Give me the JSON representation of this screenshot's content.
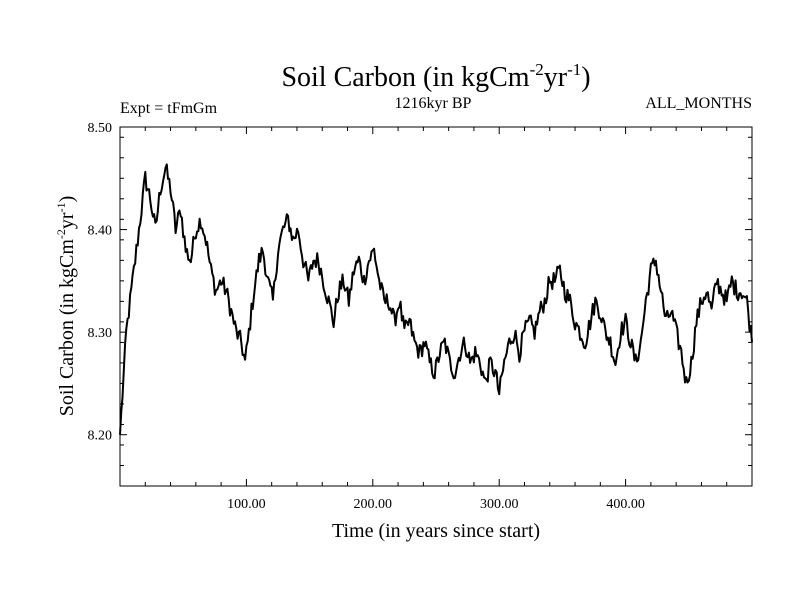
{
  "chart_data": {
    "type": "line",
    "title_main": "Soil Carbon (in kgCm",
    "title_sup1": "-2",
    "title_mid": "yr",
    "title_sup2": "-1",
    "title_end": ")",
    "experiment_label": "Expt = tFmGm",
    "period_label": "1216kyr BP",
    "months_label": "ALL_MONTHS",
    "xlabel": "Time (in years since start)",
    "ylabel_main": "Soil Carbon (in kgCm",
    "ylabel_sup1": "-2",
    "ylabel_mid": "yr",
    "ylabel_sup2": "-1",
    "ylabel_end": ")",
    "xlim": [
      0,
      500
    ],
    "ylim": [
      8.15,
      8.5
    ],
    "xticks": [
      100,
      200,
      300,
      400
    ],
    "xtick_labels": [
      "100.00",
      "200.00",
      "300.00",
      "400.00"
    ],
    "yticks": [
      8.2,
      8.3,
      8.4,
      8.5
    ],
    "ytick_labels": [
      "8.20",
      "8.30",
      "8.40",
      "8.50"
    ],
    "series": [
      {
        "name": "Soil Carbon",
        "color": "#000000",
        "anchors": [
          [
            0,
            8.2
          ],
          [
            2,
            8.24
          ],
          [
            5,
            8.3
          ],
          [
            8,
            8.33
          ],
          [
            12,
            8.37
          ],
          [
            16,
            8.41
          ],
          [
            20,
            8.45
          ],
          [
            24,
            8.43
          ],
          [
            28,
            8.4
          ],
          [
            32,
            8.44
          ],
          [
            36,
            8.46
          ],
          [
            40,
            8.44
          ],
          [
            44,
            8.4
          ],
          [
            48,
            8.42
          ],
          [
            52,
            8.38
          ],
          [
            56,
            8.37
          ],
          [
            60,
            8.4
          ],
          [
            64,
            8.41
          ],
          [
            68,
            8.39
          ],
          [
            72,
            8.36
          ],
          [
            76,
            8.34
          ],
          [
            80,
            8.35
          ],
          [
            84,
            8.34
          ],
          [
            88,
            8.32
          ],
          [
            92,
            8.3
          ],
          [
            96,
            8.29
          ],
          [
            99,
            8.27
          ],
          [
            102,
            8.3
          ],
          [
            106,
            8.34
          ],
          [
            110,
            8.37
          ],
          [
            113,
            8.38
          ],
          [
            117,
            8.35
          ],
          [
            121,
            8.33
          ],
          [
            125,
            8.38
          ],
          [
            129,
            8.4
          ],
          [
            133,
            8.41
          ],
          [
            137,
            8.39
          ],
          [
            141,
            8.4
          ],
          [
            145,
            8.37
          ],
          [
            149,
            8.35
          ],
          [
            153,
            8.37
          ],
          [
            157,
            8.37
          ],
          [
            161,
            8.35
          ],
          [
            165,
            8.33
          ],
          [
            169,
            8.31
          ],
          [
            173,
            8.34
          ],
          [
            177,
            8.35
          ],
          [
            181,
            8.33
          ],
          [
            185,
            8.36
          ],
          [
            189,
            8.37
          ],
          [
            193,
            8.35
          ],
          [
            197,
            8.37
          ],
          [
            201,
            8.38
          ],
          [
            205,
            8.35
          ],
          [
            209,
            8.33
          ],
          [
            213,
            8.33
          ],
          [
            217,
            8.31
          ],
          [
            221,
            8.33
          ],
          [
            225,
            8.3
          ],
          [
            229,
            8.31
          ],
          [
            233,
            8.29
          ],
          [
            237,
            8.28
          ],
          [
            241,
            8.29
          ],
          [
            245,
            8.27
          ],
          [
            249,
            8.26
          ],
          [
            253,
            8.28
          ],
          [
            257,
            8.29
          ],
          [
            261,
            8.27
          ],
          [
            265,
            8.26
          ],
          [
            269,
            8.28
          ],
          [
            273,
            8.29
          ],
          [
            277,
            8.27
          ],
          [
            281,
            8.28
          ],
          [
            285,
            8.27
          ],
          [
            289,
            8.25
          ],
          [
            293,
            8.27
          ],
          [
            297,
            8.26
          ],
          [
            300,
            8.24
          ],
          [
            304,
            8.27
          ],
          [
            308,
            8.29
          ],
          [
            312,
            8.3
          ],
          [
            316,
            8.28
          ],
          [
            320,
            8.3
          ],
          [
            324,
            8.31
          ],
          [
            328,
            8.3
          ],
          [
            332,
            8.32
          ],
          [
            336,
            8.33
          ],
          [
            340,
            8.35
          ],
          [
            344,
            8.35
          ],
          [
            348,
            8.36
          ],
          [
            352,
            8.34
          ],
          [
            356,
            8.33
          ],
          [
            360,
            8.31
          ],
          [
            364,
            8.3
          ],
          [
            368,
            8.29
          ],
          [
            372,
            8.31
          ],
          [
            376,
            8.33
          ],
          [
            380,
            8.32
          ],
          [
            384,
            8.3
          ],
          [
            388,
            8.29
          ],
          [
            392,
            8.27
          ],
          [
            396,
            8.3
          ],
          [
            400,
            8.31
          ],
          [
            404,
            8.29
          ],
          [
            408,
            8.27
          ],
          [
            412,
            8.29
          ],
          [
            416,
            8.33
          ],
          [
            420,
            8.36
          ],
          [
            424,
            8.37
          ],
          [
            428,
            8.34
          ],
          [
            432,
            8.31
          ],
          [
            436,
            8.32
          ],
          [
            440,
            8.3
          ],
          [
            444,
            8.28
          ],
          [
            448,
            8.25
          ],
          [
            452,
            8.27
          ],
          [
            456,
            8.31
          ],
          [
            460,
            8.33
          ],
          [
            464,
            8.34
          ],
          [
            468,
            8.32
          ],
          [
            472,
            8.35
          ],
          [
            476,
            8.34
          ],
          [
            480,
            8.33
          ],
          [
            484,
            8.35
          ],
          [
            488,
            8.34
          ],
          [
            492,
            8.34
          ],
          [
            496,
            8.33
          ],
          [
            500,
            8.29
          ]
        ]
      }
    ]
  }
}
